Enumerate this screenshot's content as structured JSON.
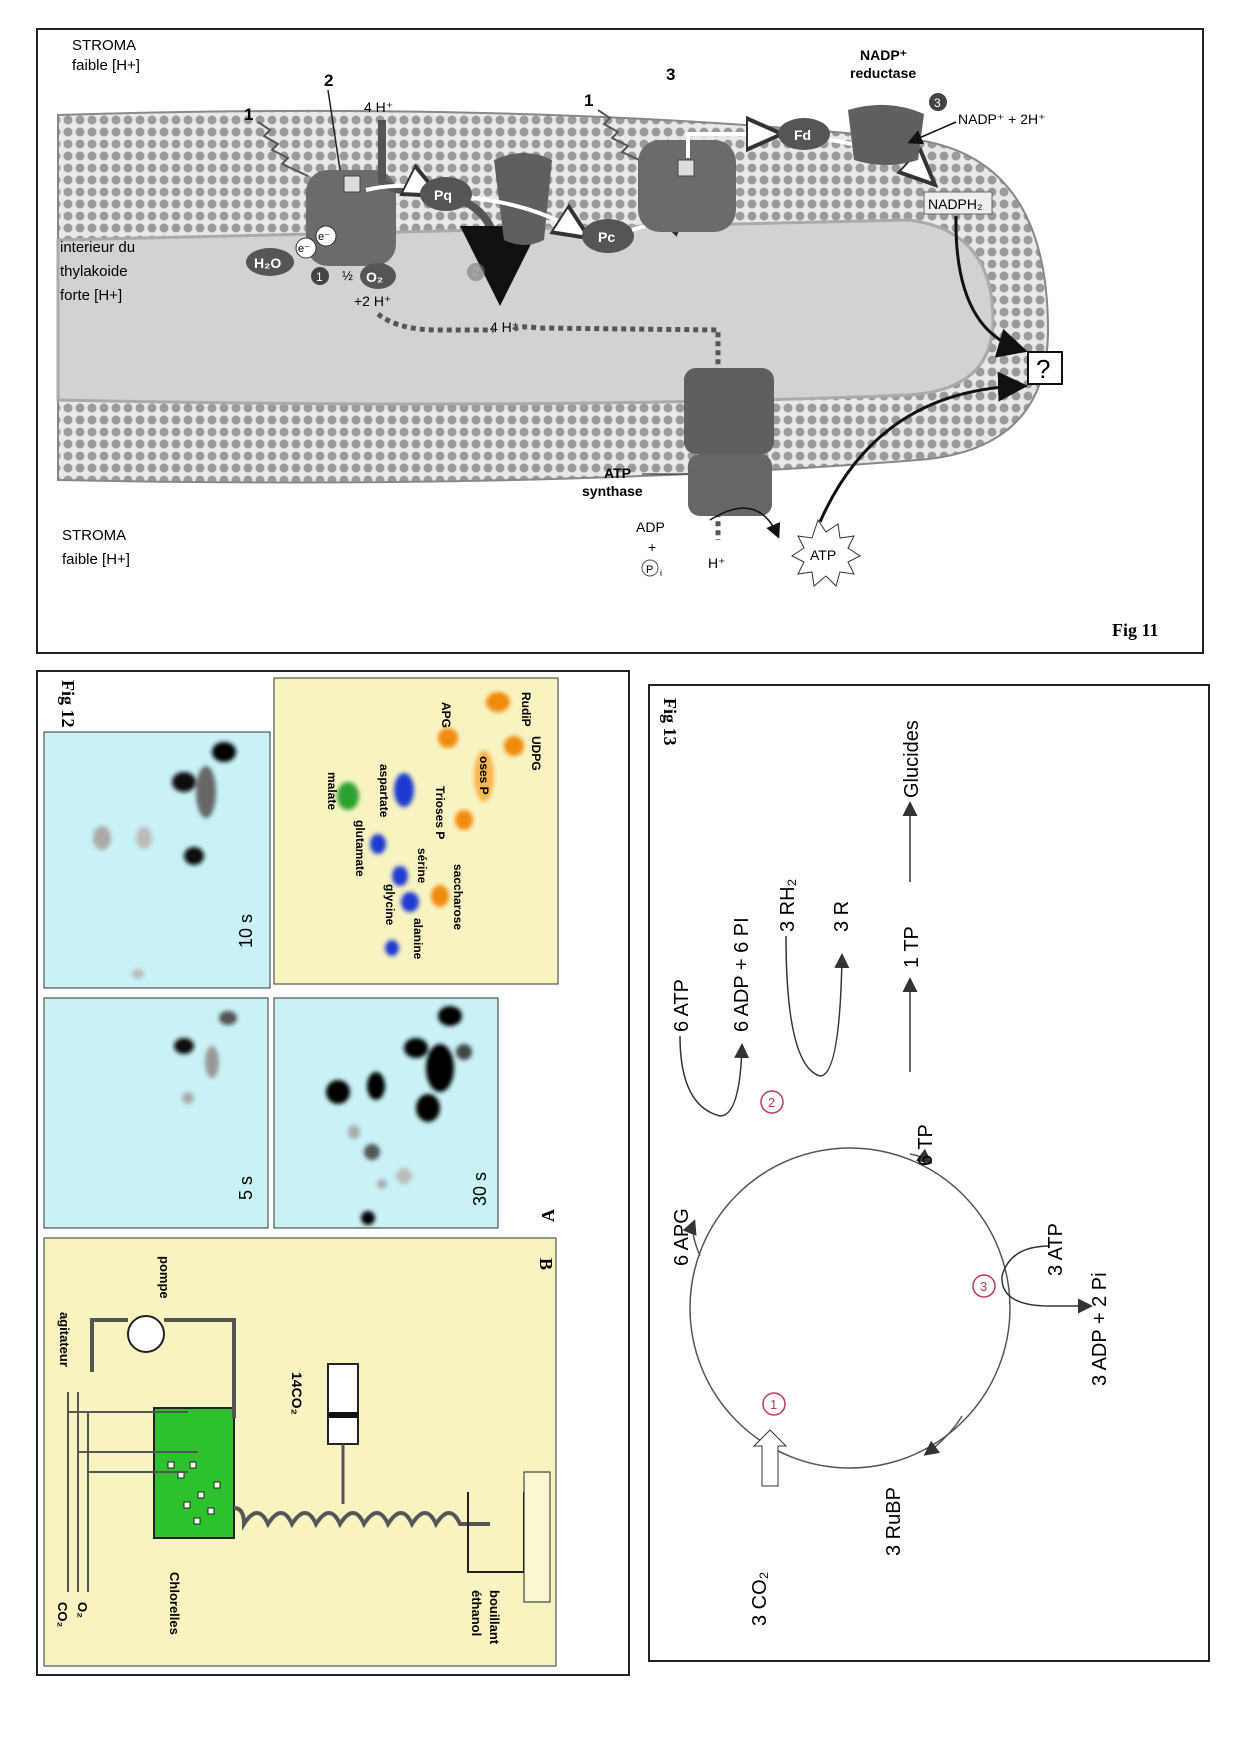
{
  "fig11": {
    "fig_label": "Fig 11",
    "stroma_top": [
      "STROMA",
      "faible [H+]"
    ],
    "interior": [
      "interieur du",
      "thylakoide",
      "forte [H+]"
    ],
    "stroma_bottom": [
      "STROMA",
      "faible [H+]"
    ],
    "num_1a": "1",
    "num_2": "2",
    "num_1b": "1",
    "num_3": "3",
    "h_in": "4 H⁺",
    "h_out": "4 H⁺",
    "h_plus_2": "+2 H⁺",
    "h_final": "H⁺",
    "water": "H₂O",
    "half": "½",
    "o2": "O₂",
    "e1": "e⁻",
    "e2": "e⁻",
    "pq": "Pq",
    "pc": "Pc",
    "fd": "Fd",
    "circle_1": "1",
    "circle_2": "2",
    "circle_3": "3",
    "nadp_reductase": [
      "NADP⁺",
      "reductase"
    ],
    "nadp_plus": "NADP⁺ + 2H⁺",
    "nadph": "NADPH₂",
    "question": "?",
    "atp_synthase": [
      "ATP",
      "synthase"
    ],
    "adp": [
      "ADP",
      "+"
    ],
    "pi": "P",
    "pi_sub": "i",
    "atp": "ATP"
  },
  "fig12": {
    "fig_label": "Fig 12",
    "label_a": "A",
    "label_b": "B",
    "times": [
      "10 s",
      "5 s",
      "30 s"
    ],
    "spots": [
      "malate",
      "aspartate",
      "glutamate",
      "glycine",
      "sérine",
      "alanine",
      "saccharose",
      "Trioses P",
      "oses P",
      "APG",
      "RudiP",
      "UDPG"
    ],
    "apparatus": {
      "pompe": "pompe",
      "agitateur": "agitateur",
      "co2_14": "14CO₂",
      "co2": "CO₂",
      "o2": "O₂",
      "chlorelles": "Chlorelles",
      "ethanol": [
        "éthanol",
        "bouillant"
      ]
    }
  },
  "fig13": {
    "fig_label": "Fig 13",
    "glucides": "Glucides",
    "tp1": "1 TP",
    "tp6": "6 TP",
    "atp6": "6 ATP",
    "adp6": "6 ADP + 6 PI",
    "rh2": "3 RH₂",
    "r3": "3 R",
    "apg6": "6 APG",
    "co2": "3 CO₂",
    "rubp": "3 RuBP",
    "atp3": "3 ATP",
    "adp3": "3 ADP + 2 Pi",
    "step1": "1",
    "step2": "2",
    "step3": "3"
  }
}
